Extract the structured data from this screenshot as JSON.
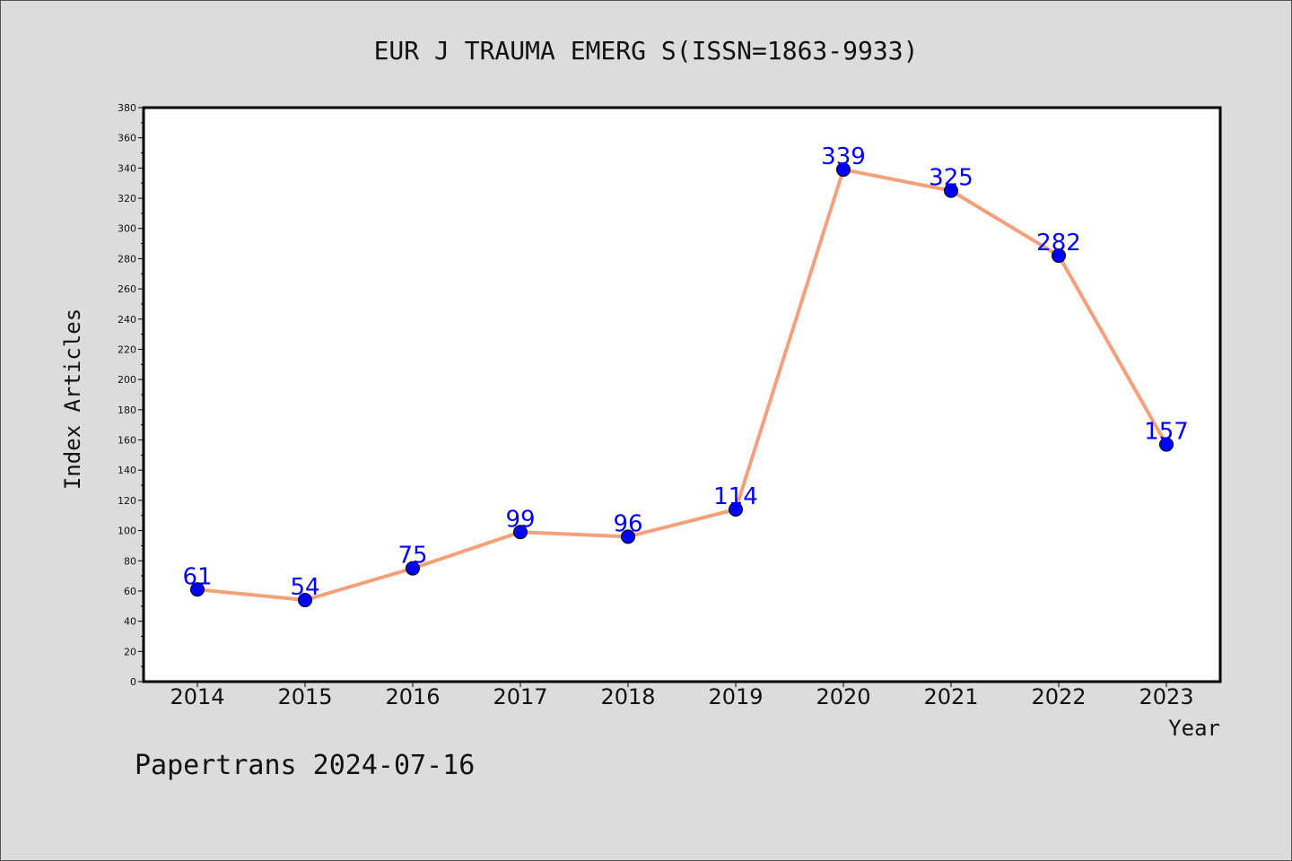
{
  "chart_data": {
    "type": "line",
    "title": "EUR J TRAUMA EMERG S(ISSN=1863-9933)",
    "xlabel": "Year",
    "ylabel": "Index Articles",
    "categories": [
      "2014",
      "2015",
      "2016",
      "2017",
      "2018",
      "2019",
      "2020",
      "2021",
      "2022",
      "2023"
    ],
    "values": [
      61,
      54,
      75,
      99,
      96,
      114,
      339,
      325,
      282,
      157
    ],
    "ylim": [
      0,
      380
    ],
    "yticks": [
      0,
      20,
      40,
      60,
      80,
      100,
      120,
      140,
      160,
      180,
      200,
      220,
      240,
      260,
      280,
      300,
      320,
      340,
      360,
      380
    ],
    "grid": false,
    "line_color": "#f4a07a",
    "marker_color": "#0000ff",
    "label_color": "#0000ff",
    "plot_background": "#ffffff",
    "page_background": "#dcdcdc"
  },
  "footer": {
    "text": "Papertrans 2024-07-16"
  }
}
